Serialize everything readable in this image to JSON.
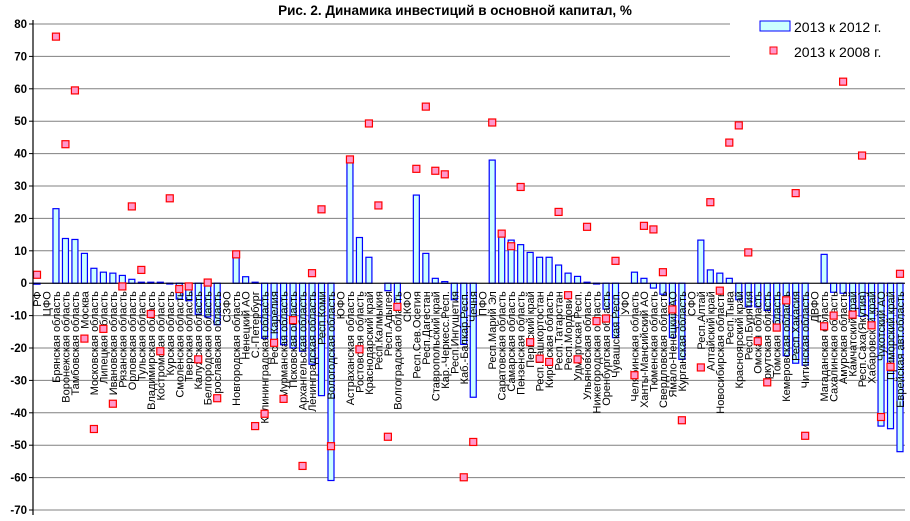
{
  "chart_data": {
    "type": "bar",
    "title": "Рис. 2. Динамика инвестиций в основной капитал, %",
    "xlabel": "",
    "ylabel": "",
    "ylim": [
      -70,
      80
    ],
    "yticks": [
      80,
      70,
      60,
      50,
      40,
      30,
      20,
      10,
      0,
      -10,
      -20,
      -30,
      -40,
      -50,
      -60,
      -70
    ],
    "grid": true,
    "legend_position": "top-right",
    "colors": {
      "bar_fill": "#ccffff",
      "bar_stroke": "#0000ff",
      "marker_fill": "#ff99cc",
      "marker_stroke": "#ff0000",
      "grid": "#808080"
    },
    "categories": [
      "РФ",
      "ЦФО",
      "Брянская область",
      "Воронежская область",
      "Тамбовская область",
      "Москва",
      "Московская область",
      "Липецкая область",
      "Ивановская область",
      "Рязанская область",
      "Орловская область",
      "Тульская область",
      "Владимирская область",
      "Костромская область",
      "Курская область",
      "Смоленская область",
      "Тверская область",
      "Калужская область",
      "Белгородская область",
      "Ярославская область",
      "СЗФО",
      "Новгородская область",
      "Ненецкий АО",
      "С.-Петербург",
      "Калининградская область",
      "Респ. Карелия",
      "Мурманская область",
      "Псковская область",
      "Архангельская область",
      "Ленинградская область",
      "Респ.Коми",
      "Вологодская область",
      "ЮФО",
      "Астраханская область",
      "Ростовская область",
      "Краснодарский край",
      "Респ.Калмыкия",
      "Респ.Адыгея",
      "Волгоградская область",
      "СКФО",
      "Респ.Сев.Осетия",
      "Респ.Дагестан",
      "Ставропольский край",
      "Кар.-Черкесс.Респ.",
      "Респ.Ингушетия",
      "Каб.-Балкар.Респ.",
      "Чечня",
      "ПФО",
      "Респ.Марий Эл",
      "Саратовская область",
      "Самарская область",
      "Пензенская область",
      "Пермский край",
      "Респ.Башкортостан",
      "Кировская область",
      "Респ.Татарстан",
      "Респ.Мордовия",
      "Удмуртская Респ.",
      "Ульяновская область",
      "Нижегородская область",
      "Оренбургская область",
      "Чувашская Респ.",
      "УФО",
      "Челябинская область",
      "Ханты-Мансийский АО",
      "Тюменская область",
      "Свердловская область",
      "Ямало-Ненецкий АО",
      "Курганская область",
      "СФО",
      "Респ.Алтай",
      "Алтайский край",
      "Новосибирская область",
      "Респ.Тыва",
      "Красноярский край",
      "Респ.Бурятия",
      "Омская область",
      "Иркутская область",
      "Томская область",
      "Кемеровская область",
      "Респ.Хакасия",
      "Читинская область",
      "ДВФО",
      "Магаданская область",
      "Сахалинская область",
      "Амурская область",
      "Камчатский край",
      "Респ.Саха(Якутия)",
      "Хабаровский край",
      "Чукотский АО",
      "Приморский край",
      "Еврейская авт.область"
    ],
    "series": [
      {
        "name": "2013 к 2012 г.",
        "kind": "bar",
        "values": [
          -0.3,
          null,
          23,
          13.8,
          13.5,
          9.2,
          4.6,
          3.4,
          3.1,
          2.4,
          1.2,
          0.3,
          0.3,
          0.3,
          0,
          -4.9,
          -5.4,
          -9.6,
          -10.4,
          -12.8,
          null,
          8.0,
          2.0,
          0.3,
          -17,
          -19,
          -19,
          -20,
          -21,
          -25,
          -34.7,
          -60.9,
          null,
          37.2,
          14.1,
          8.0,
          null,
          -2.3,
          -6.6,
          null,
          27.2,
          9.2,
          1.5,
          0.5,
          -5.1,
          -18.9,
          -35.2,
          null,
          38.0,
          14.8,
          13.3,
          11.9,
          9.5,
          8.0,
          8.0,
          5.6,
          3.1,
          2.1,
          0.3,
          0,
          -8.0,
          -16.8,
          null,
          3.4,
          1.5,
          -1.5,
          -3.4,
          -16.8,
          -23.5,
          null,
          13.3,
          4.1,
          3.1,
          1.5,
          -5.1,
          -7.3,
          -7.3,
          -8.4,
          -13.8,
          -22.4,
          -24.7,
          -25.3,
          null,
          8.9,
          -2.8,
          -3.1,
          -8.7,
          -10.2,
          -12.8,
          -44.1,
          -44.9,
          -52.0
        ]
      },
      {
        "name": "2013 к 2008 г.",
        "kind": "marker",
        "values": [
          2.6,
          null,
          76.1,
          42.9,
          59.5,
          -17.1,
          -45,
          -14.1,
          -37.2,
          -1.0,
          23.7,
          4.1,
          -9.5,
          -21,
          26.2,
          -1.8,
          -1.0,
          -23.5,
          0.2,
          -35.5,
          null,
          8.9,
          null,
          -44.1,
          -40.3,
          -18.4,
          -35.7,
          -11.4,
          -56.4,
          3.1,
          22.8,
          -50.3,
          null,
          38.2,
          -20.4,
          49.3,
          24.0,
          -47.4,
          -7.3,
          null,
          35.3,
          54.5,
          34.7,
          33.6,
          null,
          -59.9,
          -49.0,
          null,
          49.6,
          15.3,
          11.4,
          29.7,
          -18.2,
          -23.3,
          -24.3,
          22.0,
          -3.7,
          -23.5,
          17.4,
          -11.7,
          -10.9,
          6.9,
          null,
          -28.4,
          17.7,
          16.6,
          3.4,
          -8.1,
          -42.3,
          null,
          -26.0,
          25.0,
          -2.3,
          43.4,
          48.7,
          9.5,
          -17.9,
          -30.6,
          -13.7,
          -5.3,
          27.8,
          -47.1,
          null,
          -13.3,
          -10.0,
          62.2,
          -9.7,
          39.4,
          -13.0,
          -41.3,
          -25.8,
          2.9
        ]
      }
    ]
  }
}
